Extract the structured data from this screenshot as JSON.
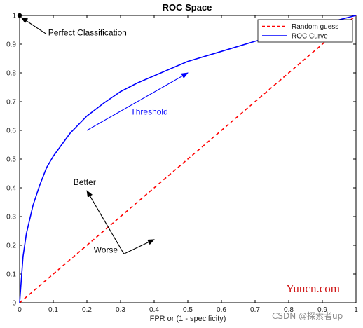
{
  "chart_data": {
    "type": "line",
    "title": "ROC Space",
    "xlabel": "FPR or (1 - specificity)",
    "ylabel": "",
    "xlim": [
      0,
      1
    ],
    "ylim": [
      0,
      1
    ],
    "grid": false,
    "legend_position": "top-right",
    "x_ticks": [
      "0",
      "0.1",
      "0.2",
      "0.3",
      "0.4",
      "0.5",
      "0.6",
      "0.7",
      "0.8",
      "0.9",
      "1"
    ],
    "y_ticks": [
      "0",
      "0.1",
      "0.2",
      "0.3",
      "0.4",
      "0.5",
      "0.6",
      "0.7",
      "0.8",
      "0.9",
      "1"
    ],
    "series": [
      {
        "name": "Random guess",
        "color": "#ff0000",
        "style": "dashed",
        "x": [
          0,
          1
        ],
        "y": [
          0,
          1
        ]
      },
      {
        "name": "ROC Curve",
        "color": "#0000ff",
        "style": "solid",
        "x": [
          0,
          0.01,
          0.02,
          0.04,
          0.06,
          0.08,
          0.1,
          0.15,
          0.2,
          0.25,
          0.3,
          0.35,
          0.4,
          0.5,
          0.6,
          0.7,
          0.8,
          0.9,
          1.0
        ],
        "y": [
          0,
          0.16,
          0.24,
          0.34,
          0.41,
          0.47,
          0.51,
          0.59,
          0.65,
          0.695,
          0.735,
          0.765,
          0.79,
          0.84,
          0.875,
          0.91,
          0.94,
          0.97,
          1.0
        ]
      }
    ],
    "points": [
      {
        "label": "Perfect Classification",
        "x": 0,
        "y": 1,
        "color": "#000000"
      }
    ],
    "annotations": [
      {
        "id": "perfect",
        "text": "Perfect Classification",
        "color": "#000000",
        "arrow_from": [
          0.08,
          0.935
        ],
        "arrow_to": [
          0.005,
          0.993
        ],
        "text_at": [
          0.085,
          0.93
        ]
      },
      {
        "id": "threshold",
        "text": "Threshold",
        "color": "#0000ff",
        "arrow_from": [
          0.2,
          0.6
        ],
        "arrow_to": [
          0.5,
          0.8
        ],
        "text_at": [
          0.33,
          0.655
        ]
      },
      {
        "id": "better",
        "text": "Better",
        "color": "#000000",
        "arrow_from": [
          0.2,
          0.3
        ],
        "arrow_to": [
          0.2,
          0.3
        ],
        "text_at": [
          0.16,
          0.41
        ]
      },
      {
        "id": "worse",
        "text": "Worse",
        "color": "#000000",
        "arrow_from": [
          0.2,
          0.3
        ],
        "arrow_to": [
          0.2,
          0.3
        ],
        "text_at": [
          0.22,
          0.175
        ]
      }
    ],
    "better_worse_arrow": {
      "from": [
        0.31,
        0.17
      ],
      "to": [
        0.2,
        0.39
      ],
      "tail_to": [
        0.4,
        0.22
      ]
    }
  },
  "watermark": {
    "site": "Yuucn.com",
    "credit": "CSDN @探索者up"
  }
}
